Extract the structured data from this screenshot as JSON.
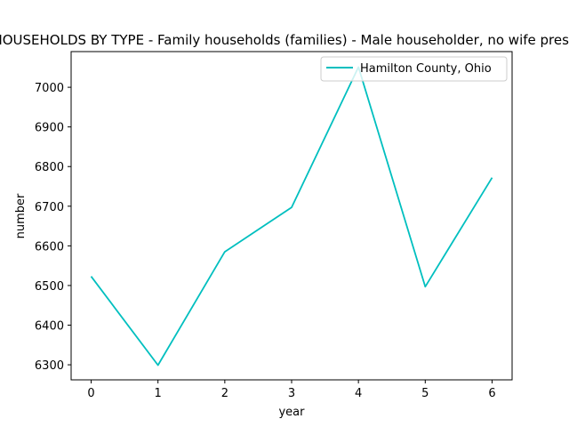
{
  "chart_data": {
    "type": "line",
    "title": "HOUSEHOLDS BY TYPE - Family households (families) - Male householder, no wife present",
    "xlabel": "year",
    "ylabel": "number",
    "x": [
      0,
      1,
      2,
      3,
      4,
      5,
      6
    ],
    "xticks": [
      "0",
      "1",
      "2",
      "3",
      "4",
      "5",
      "6"
    ],
    "xlim": [
      -0.3,
      6.3
    ],
    "yticks": [
      "6300",
      "6400",
      "6500",
      "6600",
      "6700",
      "6800",
      "6900",
      "7000"
    ],
    "yticks_values": [
      6300,
      6400,
      6500,
      6600,
      6700,
      6800,
      6900,
      7000
    ],
    "ylim": [
      6262,
      7090
    ],
    "series": [
      {
        "name": "Hamilton County, Ohio",
        "color": "#00bfbf",
        "values": [
          6523,
          6299,
          6585,
          6697,
          7051,
          6497,
          6772
        ]
      }
    ],
    "legend_position": "top-right",
    "grid": false
  }
}
